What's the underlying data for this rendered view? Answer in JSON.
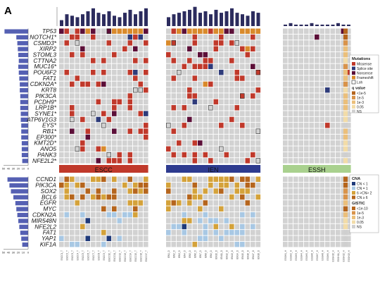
{
  "panel_label": "A",
  "colors": {
    "grid": "#d2d2d2",
    "missense": "#c0392b",
    "splice": "#2e3b7a",
    "nonsense": "#5c0f38",
    "frameshift": "#d98a2b",
    "cn_lt1": "#1f3a7a",
    "cn_eq1": "#a8c8e4",
    "cn_gt2": "#d4a23a",
    "cn_ge6": "#b5651d",
    "top_bars": "#2c2c5e",
    "left_bars": "#5560b3",
    "escc": "#c0392b",
    "ien": "#2e3b8f",
    "essh": "#a9d18e",
    "q_lt1e5": "#b5651d",
    "q_1e5": "#d9934a",
    "q_1e3": "#ebbf7a",
    "q_005": "#f2dca8",
    "q_ns": "#cfcfcf"
  },
  "chart_data": [
    {
      "type": "heatmap",
      "name_key": "mutations",
      "genes": [
        "TP53",
        "NOTCH1*",
        "CSMD3*",
        "XIRP2",
        "STOML3",
        "CTTNA2",
        "MUC16*",
        "POU6F2",
        "FAT1",
        "CDKN2A*",
        "KRT8",
        "PIK3CA",
        "PCDH9*",
        "LRP1B*",
        "SYNE1*",
        "ATP6V1G3",
        "EYS*",
        "RB1*",
        "EP300*",
        "KMT2D*",
        "ANO5",
        "PANK3",
        "NFE2L2*"
      ],
      "sample_groups": [
        {
          "label": "ESCC",
          "count": 17,
          "suffix": "T"
        },
        {
          "label": "IEN",
          "count": 18,
          "suffix": "D"
        },
        {
          "label": "ESSH",
          "count": 13,
          "suffix": "H"
        }
      ],
      "left_axis_ticks": [
        "50",
        "40",
        "30",
        "20",
        "10",
        "0"
      ],
      "top_bar_values": [
        4,
        8,
        7,
        6,
        8,
        10,
        12,
        9,
        8,
        10,
        7,
        6,
        9,
        11,
        8,
        10,
        12,
        6,
        8,
        9,
        10,
        11,
        13,
        9,
        10,
        8,
        11,
        9,
        10,
        12,
        9,
        8,
        7,
        10,
        9,
        1,
        2,
        1,
        1,
        1,
        2,
        1,
        1,
        1,
        1,
        2,
        1,
        1
      ],
      "left_bar_values": [
        48,
        24,
        22,
        21,
        20,
        19,
        20,
        19,
        18,
        17,
        17,
        16,
        16,
        16,
        15,
        15,
        14,
        14,
        14,
        13,
        13,
        13,
        12
      ],
      "legend_mutations_title": "Mutations",
      "legend_mutations": [
        "Missense",
        "Splice site",
        "Nonsense",
        "Frameshift",
        "Loh"
      ],
      "legend_q_title": "q value",
      "legend_q": [
        "<1e-5",
        "1e-5",
        "1e-3",
        "0.05",
        "NS"
      ],
      "q_values": [
        0,
        0,
        1,
        2,
        2,
        3,
        1,
        2,
        2,
        1,
        3,
        2,
        2,
        2,
        3,
        3,
        4,
        2,
        2,
        3,
        3,
        4,
        3
      ]
    },
    {
      "type": "heatmap",
      "name_key": "cna",
      "genes": [
        "CCND1",
        "PIK3CA",
        "SOX2",
        "BCL6",
        "EGFR",
        "MYC",
        "CDKN2A",
        "MIR548N",
        "NFE2L2",
        "FAT1",
        "YAP1",
        "KIF1A"
      ],
      "left_axis_ticks": [
        "50",
        "40",
        "30",
        "20",
        "10",
        "0"
      ],
      "left_bar_values": [
        42,
        38,
        35,
        30,
        26,
        24,
        22,
        20,
        18,
        16,
        14,
        12
      ],
      "legend_cna_title": "CNA",
      "legend_cna": [
        "CN < 1",
        "CN = 1",
        "6 >CN> 2",
        "CN ≥ 6"
      ],
      "legend_gistic_title": "GISTIC",
      "legend_gistic": [
        "<1e-10",
        "1e-5",
        "1e-3",
        "0.05",
        "NS"
      ],
      "q_values": [
        0,
        0,
        1,
        1,
        2,
        0,
        2,
        3,
        3,
        4,
        4,
        4
      ]
    }
  ],
  "sample_labels": [
    "ESCC1_T",
    "ESCC2_T",
    "ESCC3_T",
    "ESCC4_T",
    "ESCC5_T",
    "ESCC6_T",
    "ESCC7_T",
    "ESCC8_T",
    "ESCC9_T",
    "ESCC10_T",
    "ESCC11_T",
    "ESCC12_T",
    "ESCC13_T",
    "ESCC14_T",
    "ESCC15_T",
    "ESCC16_T",
    "ESCC17_T",
    "IEN1_D",
    "IEN2_D",
    "IEN3_D",
    "IEN4_D",
    "IEN5_D",
    "IEN6_D",
    "IEN7_D",
    "IEN8_D",
    "IEN9_D",
    "IEN10_D",
    "IEN11_D",
    "IEN12_D",
    "IEN13_D",
    "IEN14_D",
    "IEN15_D",
    "IEN16_D",
    "IEN17_D",
    "IEN18_D",
    "ESSH1_H",
    "ESSH2_H",
    "ESSH3_H",
    "ESSH4_H",
    "ESSH5_H",
    "ESSH6_H",
    "ESSH7_H",
    "ESSH8_H",
    "ESSH9_H",
    "ESSH10_H",
    "ESSH11_H",
    "ESSH12_H",
    "ESSH13_H"
  ]
}
